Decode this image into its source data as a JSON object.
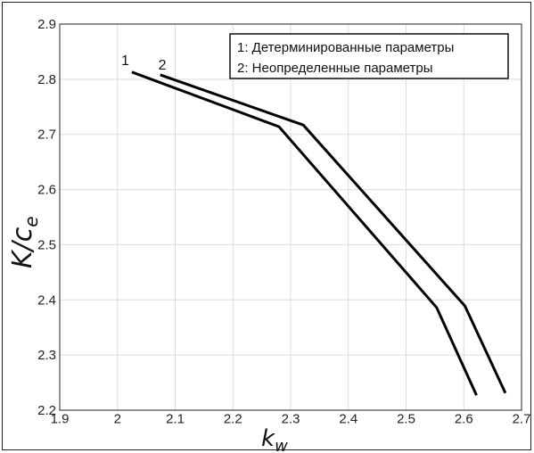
{
  "chart_data": {
    "type": "line",
    "title": "",
    "xlabel": "k",
    "xlabel_sub": "w",
    "ylabel": "K/c",
    "ylabel_sub": "e",
    "xlim": [
      1.9,
      2.7
    ],
    "ylim": [
      2.2,
      2.9
    ],
    "xticks": [
      "1.9",
      "2",
      "2.1",
      "2.2",
      "2.3",
      "2.4",
      "2.5",
      "2.6",
      "2.7"
    ],
    "yticks": [
      "2.2",
      "2.3",
      "2.4",
      "2.5",
      "2.6",
      "2.7",
      "2.8",
      "2.9"
    ],
    "grid": true,
    "legend_placement": "top-right",
    "legend": [
      "1: Детерминированные параметры",
      "2: Неопределенные параметры"
    ],
    "series": [
      {
        "label": "1",
        "color": "#000000",
        "x": [
          2.025,
          2.28,
          2.553,
          2.622
        ],
        "y": [
          2.813,
          2.714,
          2.386,
          2.227
        ]
      },
      {
        "label": "2",
        "color": "#000000",
        "x": [
          2.074,
          2.322,
          2.602,
          2.672
        ],
        "y": [
          2.808,
          2.717,
          2.389,
          2.231
        ]
      }
    ]
  }
}
